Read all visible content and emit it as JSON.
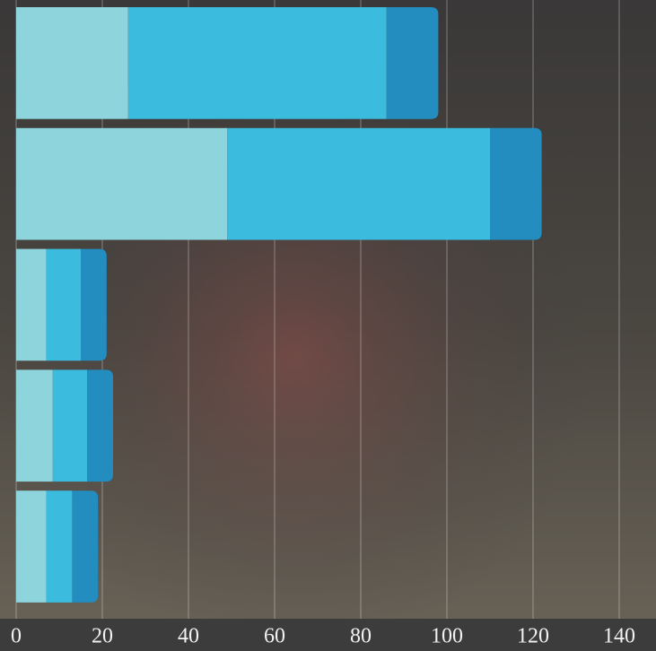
{
  "chart_data": {
    "type": "stacked-bar-horizontal",
    "categories": [
      null,
      null,
      null,
      null,
      null
    ],
    "series": [
      {
        "color": "#8dd4dc",
        "values": [
          26,
          49,
          7,
          8.5,
          7
        ]
      },
      {
        "color": "#3bbcdf",
        "values": [
          60,
          61,
          8,
          8,
          6
        ]
      },
      {
        "color": "#238dc0",
        "values": [
          12,
          12,
          6,
          6,
          6
        ]
      }
    ],
    "xlim": [
      0,
      148
    ],
    "xticks": [
      0,
      20,
      40,
      60,
      80,
      100,
      120,
      140
    ],
    "grid": true
  }
}
